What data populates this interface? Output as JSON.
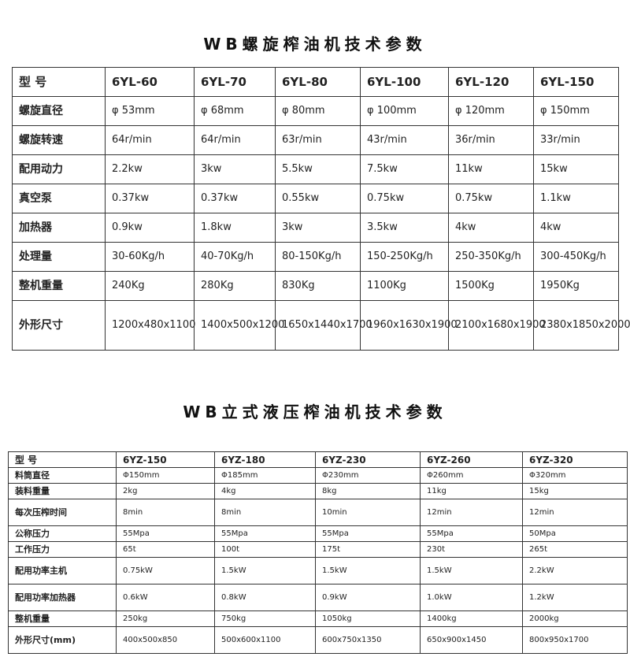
{
  "table1": {
    "title": "WB螺旋榨油机技术参数",
    "header": [
      "型 号",
      "6YL-60",
      "6YL-70",
      "6YL-80",
      "6YL-100",
      "6YL-120",
      "6YL-150"
    ],
    "rows": [
      [
        "螺旋直径",
        "φ 53mm",
        "φ 68mm",
        "φ 80mm",
        "φ 100mm",
        "φ 120mm",
        "φ 150mm"
      ],
      [
        "螺旋转速",
        "64r/min",
        "64r/min",
        "63r/min",
        "43r/min",
        "36r/min",
        "33r/min"
      ],
      [
        "配用动力",
        "2.2kw",
        "3kw",
        "5.5kw",
        "7.5kw",
        "11kw",
        "15kw"
      ],
      [
        "真空泵",
        "0.37kw",
        "0.37kw",
        "0.55kw",
        "0.75kw",
        "0.75kw",
        "1.1kw"
      ],
      [
        "加热器",
        "0.9kw",
        "1.8kw",
        "3kw",
        "3.5kw",
        "4kw",
        "4kw"
      ],
      [
        "处理量",
        "30-60Kg/h",
        "40-70Kg/h",
        "80-150Kg/h",
        "150-250Kg/h",
        "250-350Kg/h",
        "300-450Kg/h"
      ],
      [
        "整机重量",
        "240Kg",
        "280Kg",
        "830Kg",
        "1100Kg",
        "1500Kg",
        "1950Kg"
      ],
      [
        "外形尺寸",
        "1200x480x1100",
        "1400x500x1200",
        "1650x1440x1700",
        "1960x1630x1900",
        "2100x1680x1900",
        "2380x1850x2000"
      ]
    ]
  },
  "table2": {
    "title": "WB立式液压榨油机技术参数",
    "header": [
      "型 号",
      "6YZ-150",
      "6YZ-180",
      "6YZ-230",
      "6YZ-260",
      "6YZ-320"
    ],
    "rows": [
      [
        "料筒直径",
        "Φ150mm",
        "Φ185mm",
        "Φ230mm",
        "Φ260mm",
        "Φ320mm"
      ],
      [
        "装料重量",
        "2kg",
        "4kg",
        "8kg",
        "11kg",
        "15kg"
      ],
      [
        "每次压榨时间",
        "8min",
        "8min",
        "10min",
        "12min",
        "12min"
      ],
      [
        "公称压力",
        "55Mpa",
        "55Mpa",
        "55Mpa",
        "55Mpa",
        "50Mpa"
      ],
      [
        "工作压力",
        "65t",
        "100t",
        "175t",
        "230t",
        "265t"
      ],
      [
        "配用功率主机",
        "0.75kW",
        "1.5kW",
        "1.5kW",
        "1.5kW",
        "2.2kW"
      ],
      [
        "配用功率加热器",
        "0.6kW",
        "0.8kW",
        "0.9kW",
        "1.0kW",
        "1.2kW"
      ],
      [
        "整机重量",
        "250kg",
        "750kg",
        "1050kg",
        "1400kg",
        "2000kg"
      ],
      [
        "外形尺寸(mm)",
        "400x500x850",
        "500x600x1100",
        "600x750x1350",
        "650x900x1450",
        "800x950x1700"
      ]
    ]
  }
}
